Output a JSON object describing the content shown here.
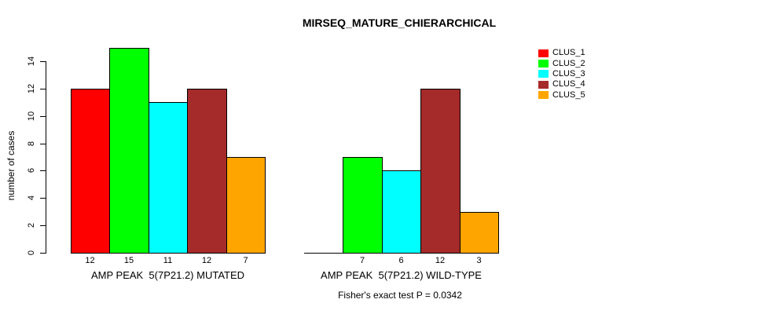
{
  "chart_data": {
    "type": "bar",
    "title": "MIRSEQ_MATURE_CHIERARCHICAL",
    "ylabel": "number of cases",
    "xlabel": "",
    "yticks": [
      0,
      2,
      4,
      6,
      8,
      10,
      12,
      14
    ],
    "ylim": [
      0,
      15
    ],
    "grid": false,
    "legend_position": "right",
    "series": [
      {
        "name": "CLUS_1",
        "color": "#FF0000"
      },
      {
        "name": "CLUS_2",
        "color": "#00FF00"
      },
      {
        "name": "CLUS_3",
        "color": "#00FFFF"
      },
      {
        "name": "CLUS_4",
        "color": "#A52A2A"
      },
      {
        "name": "CLUS_5",
        "color": "#FFA500"
      }
    ],
    "groups": [
      {
        "label": "AMP PEAK  5(7P21.2) MUTATED",
        "values": [
          12,
          15,
          11,
          12,
          7
        ],
        "value_labels": [
          "12",
          "15",
          "11",
          "12",
          "7"
        ]
      },
      {
        "label": "AMP PEAK  5(7P21.2) WILD-TYPE",
        "values": [
          0,
          7,
          6,
          12,
          3
        ],
        "value_labels": [
          "",
          "7",
          "6",
          "12",
          "3"
        ]
      }
    ],
    "annotation": "Fisher's exact test P = 0.0342"
  }
}
